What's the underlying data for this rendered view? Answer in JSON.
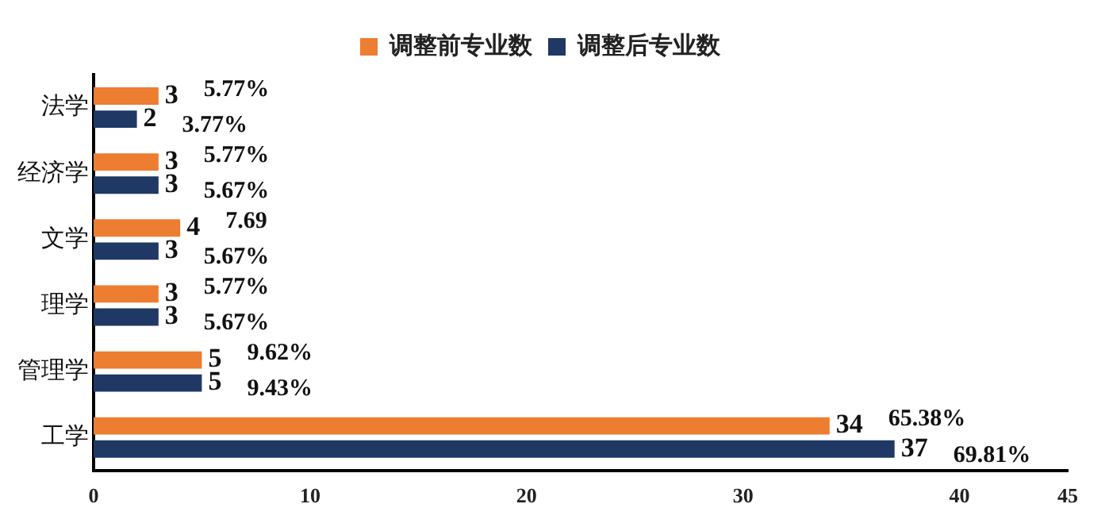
{
  "chart_data": {
    "type": "bar",
    "orientation": "horizontal",
    "categories": [
      "法学",
      "经济学",
      "文学",
      "理学",
      "管理学",
      "工学"
    ],
    "series": [
      {
        "name": "调整前专业数",
        "color": "#ed7d31",
        "values": [
          3,
          3,
          4,
          3,
          5,
          34
        ]
      },
      {
        "name": "调整后专业数",
        "color": "#203864",
        "values": [
          2,
          3,
          3,
          3,
          5,
          37
        ]
      }
    ],
    "xlim": [
      0,
      45
    ],
    "xticks": [
      0,
      10,
      20,
      30,
      40,
      45
    ],
    "grid": false,
    "legend": "top",
    "data_labels": true,
    "annotations": [
      {
        "text": "5.77%",
        "x": 3,
        "y": "法学"
      },
      {
        "text": "5.77%",
        "x": 3,
        "y": "经济学"
      },
      {
        "text": "7.69",
        "x": 4,
        "y": "文学"
      },
      {
        "text": "5.77%",
        "x": 3,
        "y": "理学"
      },
      {
        "text": "9.62%",
        "x": 5,
        "y": "管理学"
      },
      {
        "text": "65.38%",
        "x": 34,
        "y": "工学"
      },
      {
        "text": "3.77%",
        "x": 2,
        "y": "法学"
      },
      {
        "text": "5.67%",
        "x": 3,
        "y": "经济学"
      },
      {
        "text": "5.67%",
        "x": 3,
        "y": "文学"
      },
      {
        "text": "5.67%",
        "x": 3,
        "y": "理学"
      },
      {
        "text": "9.43%",
        "x": 5,
        "y": "管理学"
      },
      {
        "text": "69.81%",
        "x": 37,
        "y": "工学"
      }
    ]
  }
}
